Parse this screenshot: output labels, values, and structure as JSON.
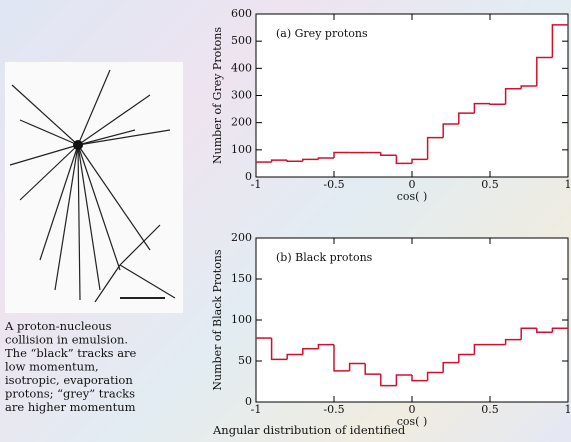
{
  "caption": [
    "A proton-nucleous",
    "collision in emulsion.",
    "The “black” tracks are",
    "low momentum,",
    "isotropic, evaporation",
    "protons; “grey” tracks",
    "are higher momentum"
  ],
  "footer": "Angular distribution of identified",
  "chart_data": [
    {
      "type": "histogram",
      "annotation": "(a) Grey protons",
      "x_label": "cos( )",
      "y_label": "Number of Grey Protons",
      "color": "#d0102e",
      "bins": [
        -1,
        -0.9,
        -0.8,
        -0.7,
        -0.6,
        -0.5,
        -0.4,
        -0.3,
        -0.2,
        -0.1,
        0,
        0.1,
        0.2,
        0.3,
        0.4,
        0.5,
        0.6,
        0.7,
        0.8,
        0.9,
        1
      ],
      "values": [
        55,
        62,
        58,
        65,
        70,
        90,
        90,
        90,
        80,
        50,
        65,
        145,
        195,
        235,
        270,
        268,
        325,
        335,
        440,
        560
      ],
      "xlim": [
        -1,
        1
      ],
      "xticks": [
        -1,
        -0.5,
        0,
        0.5,
        1
      ],
      "ylim": [
        0,
        600
      ],
      "yticks": [
        0,
        100,
        200,
        300,
        400,
        500,
        600
      ]
    },
    {
      "type": "histogram",
      "annotation": "(b) Black protons",
      "x_label": "cos( )",
      "y_label": "Number of Black Protons",
      "color": "#d0102e",
      "bins": [
        -1,
        -0.9,
        -0.8,
        -0.7,
        -0.6,
        -0.5,
        -0.4,
        -0.3,
        -0.2,
        -0.1,
        0,
        0.1,
        0.2,
        0.3,
        0.4,
        0.5,
        0.6,
        0.7,
        0.8,
        0.9,
        1
      ],
      "values": [
        78,
        52,
        58,
        65,
        70,
        38,
        47,
        34,
        20,
        33,
        26,
        36,
        48,
        58,
        70,
        70,
        76,
        90,
        85,
        90
      ],
      "xlim": [
        -1,
        1
      ],
      "xticks": [
        -1,
        -0.5,
        0,
        0.5,
        1
      ],
      "ylim": [
        0,
        200
      ],
      "yticks": [
        0,
        50,
        100,
        150,
        200
      ]
    }
  ]
}
